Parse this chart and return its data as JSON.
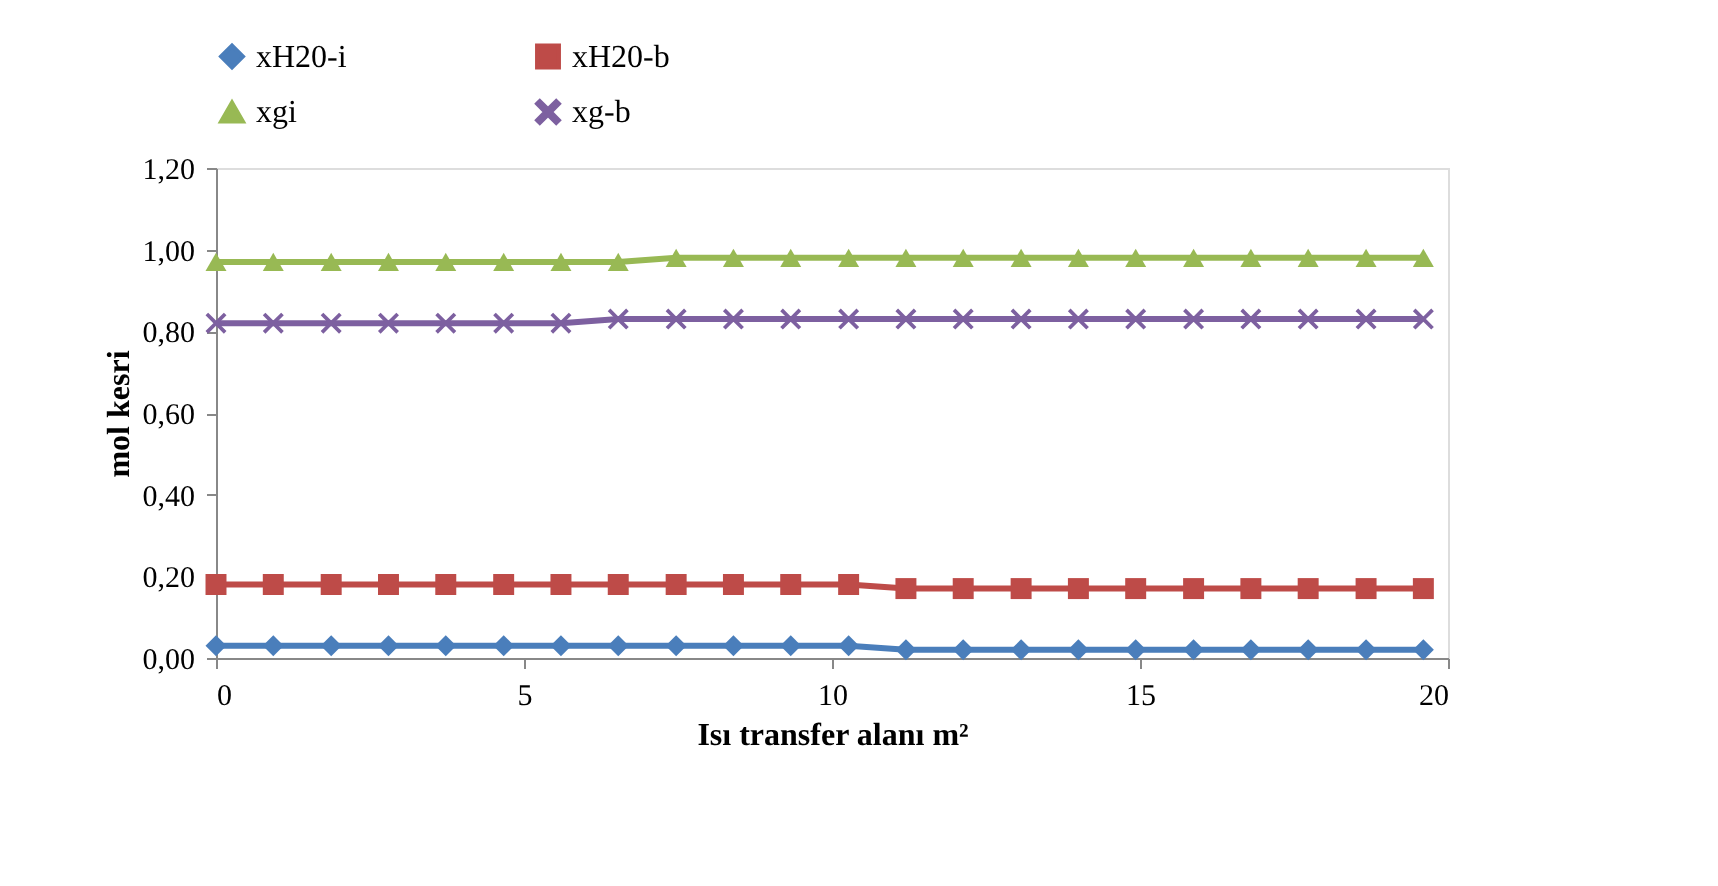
{
  "chart_data": {
    "type": "line",
    "xlabel": "Isı transfer alanı m²",
    "ylabel": "mol kesri",
    "x": [
      0,
      0.93,
      1.87,
      2.8,
      3.73,
      4.67,
      5.6,
      6.53,
      7.47,
      8.4,
      9.33,
      10.27,
      11.2,
      12.13,
      13.07,
      14,
      14.93,
      15.87,
      16.8,
      17.73,
      18.67,
      19.6
    ],
    "xlim": [
      0,
      20
    ],
    "xticks": [
      0,
      5,
      10,
      15,
      20
    ],
    "ylim": [
      0,
      1.2
    ],
    "yticks": [
      {
        "value": 0,
        "label": "0,00"
      },
      {
        "value": 0.2,
        "label": "0,20"
      },
      {
        "value": 0.4,
        "label": "0,40"
      },
      {
        "value": 0.6,
        "label": "0,60"
      },
      {
        "value": 0.8,
        "label": "0,80"
      },
      {
        "value": 1.0,
        "label": "1,00"
      },
      {
        "value": 1.2,
        "label": "1,20"
      }
    ],
    "grid": false,
    "legend": "top",
    "series": [
      {
        "name": "xH20-i",
        "color": "#4a7ebb",
        "marker": "diamond",
        "values": [
          0.03,
          0.03,
          0.03,
          0.03,
          0.03,
          0.03,
          0.03,
          0.03,
          0.03,
          0.03,
          0.03,
          0.03,
          0.02,
          0.02,
          0.02,
          0.02,
          0.02,
          0.02,
          0.02,
          0.02,
          0.02,
          0.02
        ]
      },
      {
        "name": "xH20-b",
        "color": "#be4b48",
        "marker": "square",
        "values": [
          0.18,
          0.18,
          0.18,
          0.18,
          0.18,
          0.18,
          0.18,
          0.18,
          0.18,
          0.18,
          0.18,
          0.18,
          0.17,
          0.17,
          0.17,
          0.17,
          0.17,
          0.17,
          0.17,
          0.17,
          0.17,
          0.17
        ]
      },
      {
        "name": "xgi",
        "color": "#98b954",
        "marker": "triangle",
        "values": [
          0.97,
          0.97,
          0.97,
          0.97,
          0.97,
          0.97,
          0.97,
          0.97,
          0.98,
          0.98,
          0.98,
          0.98,
          0.98,
          0.98,
          0.98,
          0.98,
          0.98,
          0.98,
          0.98,
          0.98,
          0.98,
          0.98
        ]
      },
      {
        "name": "xg-b",
        "color": "#7d60a0",
        "marker": "cross",
        "values": [
          0.82,
          0.82,
          0.82,
          0.82,
          0.82,
          0.82,
          0.82,
          0.83,
          0.83,
          0.83,
          0.83,
          0.83,
          0.83,
          0.83,
          0.83,
          0.83,
          0.83,
          0.83,
          0.83,
          0.83,
          0.83,
          0.83
        ]
      }
    ]
  }
}
